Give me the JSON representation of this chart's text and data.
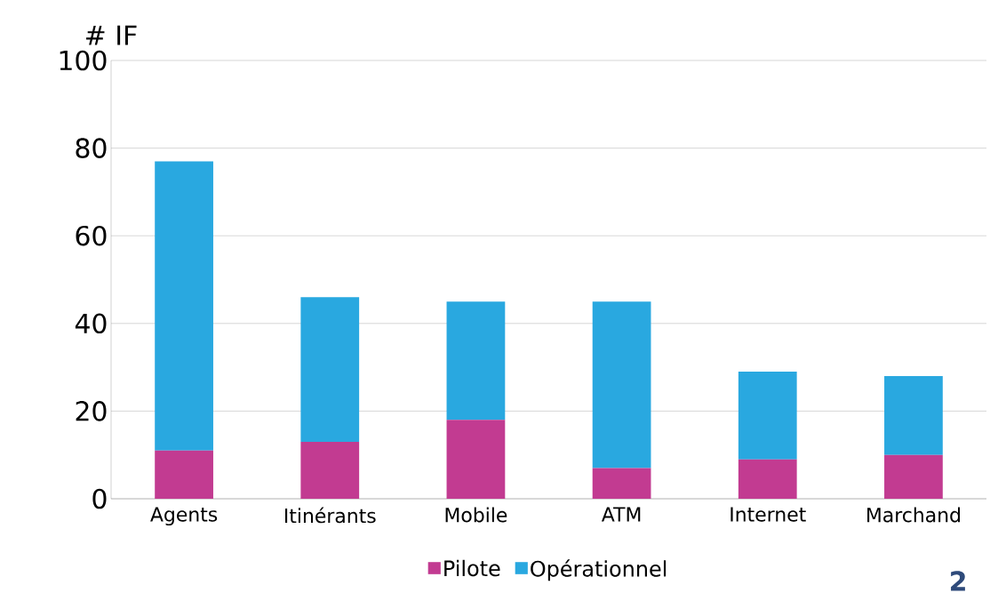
{
  "chart_data": {
    "type": "bar",
    "stacked": true,
    "ylabel": "# IF",
    "categories": [
      "Agents",
      "Itinérants",
      "Mobile",
      "ATM",
      "Internet",
      "Marchand"
    ],
    "series": [
      {
        "name": "Pilote",
        "color": "#c23b91",
        "values": [
          11,
          13,
          18,
          7,
          9,
          10
        ]
      },
      {
        "name": "Opérationnel",
        "color": "#29a8e0",
        "values": [
          66,
          33,
          27,
          38,
          20,
          18
        ]
      }
    ],
    "ylim": [
      0,
      100
    ],
    "yticks": [
      0,
      20,
      40,
      60,
      80,
      100
    ],
    "grid": "y",
    "legend": "bottom",
    "annotations": [
      "2"
    ]
  }
}
